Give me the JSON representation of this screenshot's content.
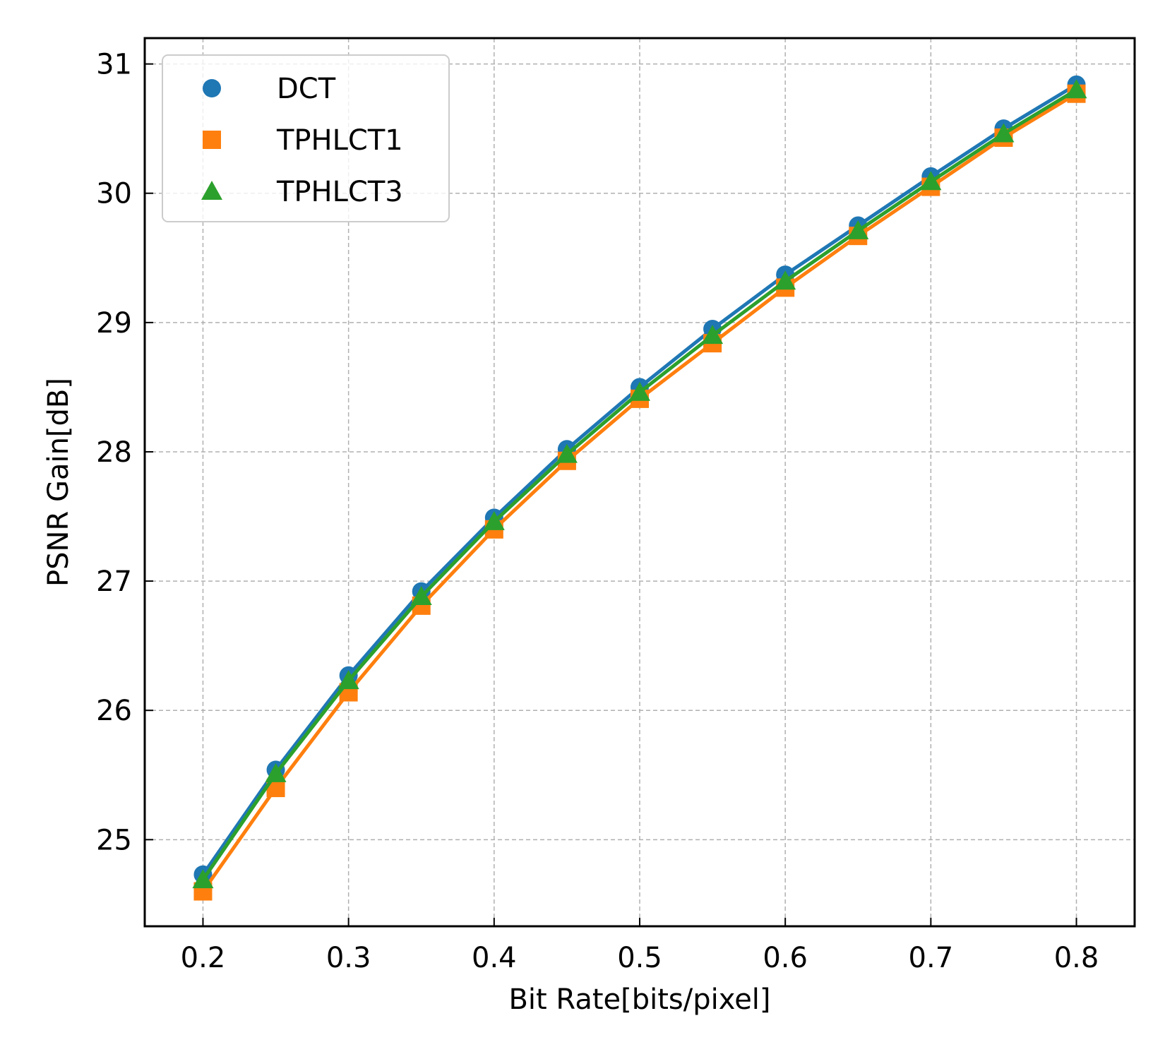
{
  "chart_data": {
    "type": "line",
    "title": "",
    "xlabel": "Bit Rate[bits/pixel]",
    "ylabel": "PSNR Gain[dB]",
    "xlim": [
      0.16,
      0.84
    ],
    "ylim": [
      24.33,
      31.2
    ],
    "x_ticks": [
      "0.2",
      "0.3",
      "0.4",
      "0.5",
      "0.6",
      "0.7",
      "0.8"
    ],
    "y_ticks": [
      "25",
      "26",
      "27",
      "28",
      "29",
      "30",
      "31"
    ],
    "grid": true,
    "legend_position": "top-left",
    "x": [
      0.2,
      0.25,
      0.3,
      0.35,
      0.4,
      0.45,
      0.5,
      0.55,
      0.6,
      0.65,
      0.7,
      0.75,
      0.8
    ],
    "series": [
      {
        "name": "DCT",
        "marker": "circle",
        "color": "#1f77b4",
        "values": [
          24.73,
          25.54,
          26.27,
          26.92,
          27.49,
          28.02,
          28.5,
          28.95,
          29.37,
          29.75,
          30.13,
          30.5,
          30.84
        ]
      },
      {
        "name": "TPHLCT1",
        "marker": "square",
        "color": "#ff7f0e",
        "values": [
          24.6,
          25.4,
          26.14,
          26.81,
          27.4,
          27.93,
          28.41,
          28.84,
          29.27,
          29.67,
          30.05,
          30.43,
          30.77
        ]
      },
      {
        "name": "TPHLCT3",
        "marker": "triangle",
        "color": "#2ca02c",
        "values": [
          24.69,
          25.51,
          26.23,
          26.88,
          27.46,
          27.98,
          28.46,
          28.9,
          29.32,
          29.71,
          30.09,
          30.46,
          30.8
        ]
      }
    ]
  }
}
